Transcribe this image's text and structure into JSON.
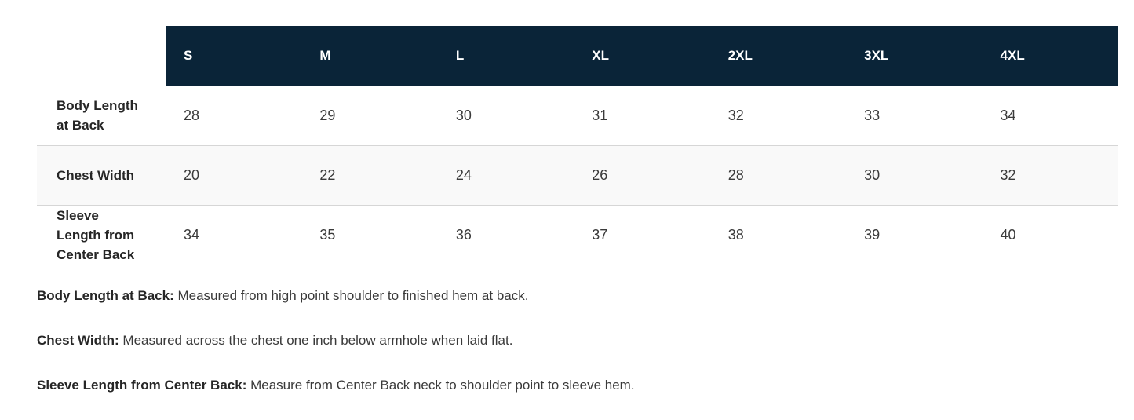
{
  "size_chart": {
    "columns": [
      "S",
      "M",
      "L",
      "XL",
      "2XL",
      "3XL",
      "4XL"
    ],
    "rows": [
      {
        "label": "Body Length at Back",
        "values": [
          28,
          29,
          30,
          31,
          32,
          33,
          34
        ]
      },
      {
        "label": "Chest Width",
        "values": [
          20,
          22,
          24,
          26,
          28,
          30,
          32
        ]
      },
      {
        "label": "Sleeve Length from Center Back",
        "values": [
          34,
          35,
          36,
          37,
          38,
          39,
          40
        ]
      }
    ]
  },
  "notes": [
    {
      "term": "Body Length at Back:",
      "description": "Measured from high point shoulder to finished hem at back."
    },
    {
      "term": "Chest Width:",
      "description": "Measured across the chest one inch below armhole when laid flat."
    },
    {
      "term": "Sleeve Length from Center Back:",
      "description": "Measure from Center Back neck to shoulder point to sleeve hem."
    }
  ],
  "colors": {
    "header_bg": "#0a2438",
    "header_text": "#ffffff",
    "row_alt_bg": "#f9f9f9",
    "divider": "#d6d6d6",
    "label_text": "#262626",
    "value_text": "#3a3a3a"
  }
}
